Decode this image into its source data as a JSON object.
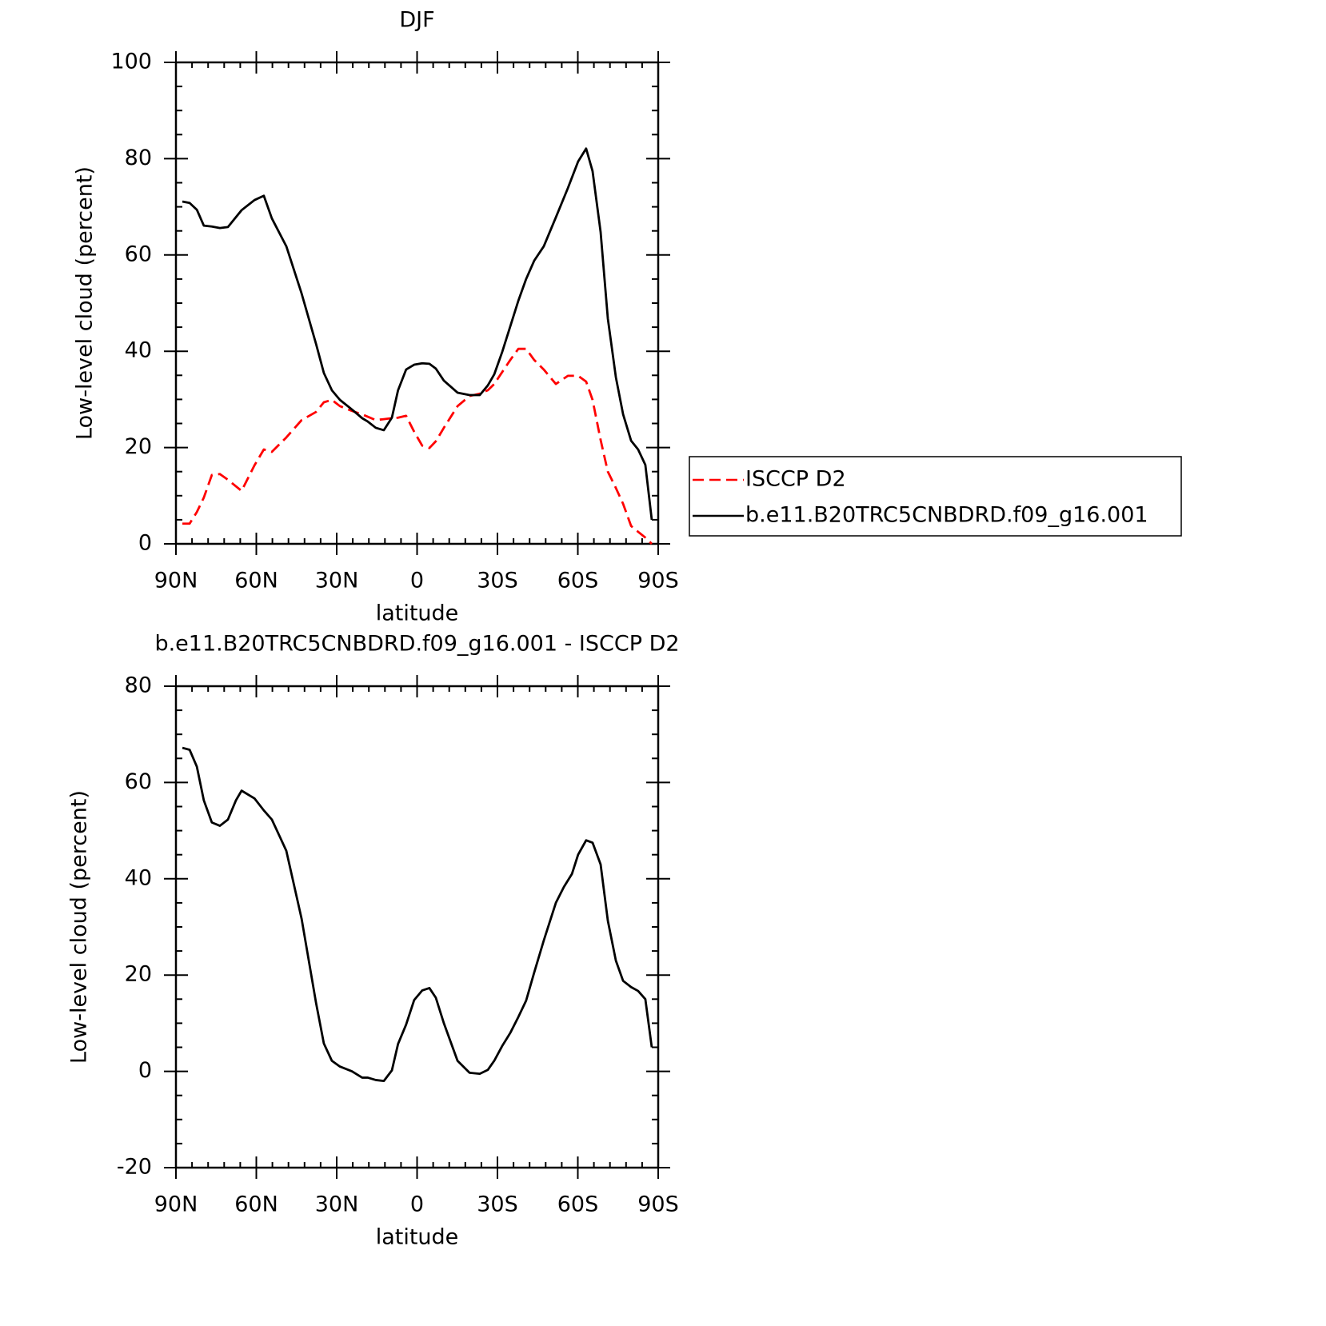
{
  "chart_data": [
    {
      "type": "line",
      "title": "DJF",
      "xlabel": "latitude",
      "ylabel": "Low-level cloud (percent)",
      "xlim": [
        90,
        -90
      ],
      "xticks": [
        {
          "value": 90,
          "label": "90N"
        },
        {
          "value": 60,
          "label": "60N"
        },
        {
          "value": 30,
          "label": "30N"
        },
        0,
        {
          "value": -30,
          "label": "30S"
        },
        {
          "value": -60,
          "label": "60S"
        },
        {
          "value": -90,
          "label": "90S"
        }
      ],
      "ylim": [
        0,
        100
      ],
      "yticks": [
        0,
        20,
        40,
        60,
        80,
        100
      ],
      "legend": "right",
      "x": [
        87.6,
        84.9,
        82.2,
        79.6,
        76.6,
        73.6,
        70.6,
        65.5,
        60.7,
        57.2,
        54.2,
        48.8,
        43.1,
        37.7,
        34.8,
        31.8,
        28.8,
        24.3,
        20.5,
        18.4,
        15.4,
        12.4,
        9.4,
        7.1,
        4.1,
        1.1,
        -1.9,
        -4.6,
        -7.0,
        -10.0,
        -15.1,
        -19.6,
        -23.4,
        -26.4,
        -28.8,
        -31.8,
        -34.8,
        -37.8,
        -40.7,
        -43.7,
        -47.3,
        -51.8,
        -56.3,
        -60.1,
        -63.1,
        -65.5,
        -68.5,
        -71.2,
        -74.2,
        -76.9,
        -79.9,
        -82.5,
        -85.2,
        -87.6
      ],
      "series": [
        {
          "name": "ISCCP D2",
          "color": "#ff0000",
          "dash": true,
          "values": [
            4.2,
            4.2,
            6.6,
            9.6,
            14.3,
            14.5,
            13.3,
            11.0,
            16.3,
            19.6,
            19.1,
            22.1,
            25.7,
            27.4,
            29.4,
            29.9,
            28.6,
            27.6,
            26.9,
            26.4,
            25.7,
            25.9,
            26.1,
            26.2,
            26.6,
            23.3,
            20.4,
            19.9,
            21.3,
            24.1,
            28.6,
            30.7,
            31.2,
            31.9,
            33.2,
            35.7,
            38.2,
            40.5,
            40.5,
            38.2,
            36.2,
            33.2,
            34.9,
            34.9,
            33.7,
            29.9,
            21.6,
            15.0,
            11.6,
            8.3,
            3.7,
            2.5,
            1.3,
            0
          ]
        },
        {
          "name": "b.e11.B20TRC5CNBDRD.f09_g16.001",
          "color": "#000000",
          "dash": false,
          "values": [
            71.1,
            70.8,
            69.4,
            66.1,
            65.9,
            65.6,
            65.8,
            69.3,
            71.4,
            72.3,
            67.6,
            61.8,
            52.0,
            41.5,
            35.5,
            31.9,
            29.9,
            27.9,
            26.1,
            25.4,
            24.1,
            23.6,
            26.2,
            31.9,
            36.2,
            37.2,
            37.5,
            37.4,
            36.4,
            33.9,
            31.4,
            30.9,
            30.9,
            32.9,
            35.2,
            39.9,
            45.2,
            50.5,
            55.0,
            58.8,
            61.8,
            67.8,
            73.9,
            79.4,
            82.1,
            77.4,
            64.8,
            46.8,
            34.6,
            26.9,
            21.4,
            19.6,
            16.4,
            5.0
          ]
        }
      ]
    },
    {
      "type": "line",
      "title": "b.e11.B20TRC5CNBDRD.f09_g16.001 - ISCCP D2",
      "xlabel": "latitude",
      "ylabel": "Low-level cloud (percent)",
      "xlim": [
        90,
        -90
      ],
      "xticks": [
        {
          "value": 90,
          "label": "90N"
        },
        {
          "value": 60,
          "label": "60N"
        },
        {
          "value": 30,
          "label": "30N"
        },
        0,
        {
          "value": -30,
          "label": "30S"
        },
        {
          "value": -60,
          "label": "60S"
        },
        {
          "value": -90,
          "label": "90S"
        }
      ],
      "ylim": [
        -20,
        80
      ],
      "yticks": [
        -20,
        0,
        20,
        40,
        60,
        80
      ],
      "x": [
        87.6,
        84.9,
        82.2,
        79.6,
        76.6,
        73.6,
        70.6,
        67.6,
        65.5,
        60.7,
        57.2,
        54.2,
        51.2,
        48.8,
        43.1,
        37.7,
        34.8,
        31.8,
        28.8,
        24.3,
        20.5,
        18.4,
        15.4,
        12.4,
        9.4,
        7.1,
        4.1,
        1.1,
        -1.9,
        -4.6,
        -7.0,
        -10.0,
        -15.1,
        -19.6,
        -23.4,
        -26.4,
        -28.8,
        -31.8,
        -34.8,
        -37.8,
        -40.7,
        -43.7,
        -47.3,
        -51.8,
        -54.8,
        -57.8,
        -60.1,
        -63.1,
        -65.5,
        -68.5,
        -71.2,
        -74.2,
        -76.9,
        -79.9,
        -82.5,
        -85.2,
        -87.6
      ],
      "series": [
        {
          "color": "#000000",
          "dash": false,
          "values": [
            67.2,
            66.8,
            63.3,
            56.3,
            51.7,
            51.0,
            52.3,
            56.3,
            58.3,
            56.7,
            54.2,
            52.3,
            48.7,
            45.8,
            31.7,
            14.2,
            5.8,
            2.2,
            1.0,
            0,
            -1.3,
            -1.3,
            -1.8,
            -2.0,
            0.2,
            5.7,
            9.7,
            14.8,
            16.8,
            17.3,
            15.3,
            10.0,
            2.2,
            -0.3,
            -0.5,
            0.3,
            2.2,
            5.3,
            8.0,
            11.3,
            14.7,
            20.5,
            27.2,
            35.0,
            38.3,
            41.0,
            45.0,
            48.0,
            47.5,
            43.0,
            31.3,
            23.0,
            18.8,
            17.5,
            16.7,
            15.0,
            5.0
          ]
        }
      ]
    }
  ]
}
